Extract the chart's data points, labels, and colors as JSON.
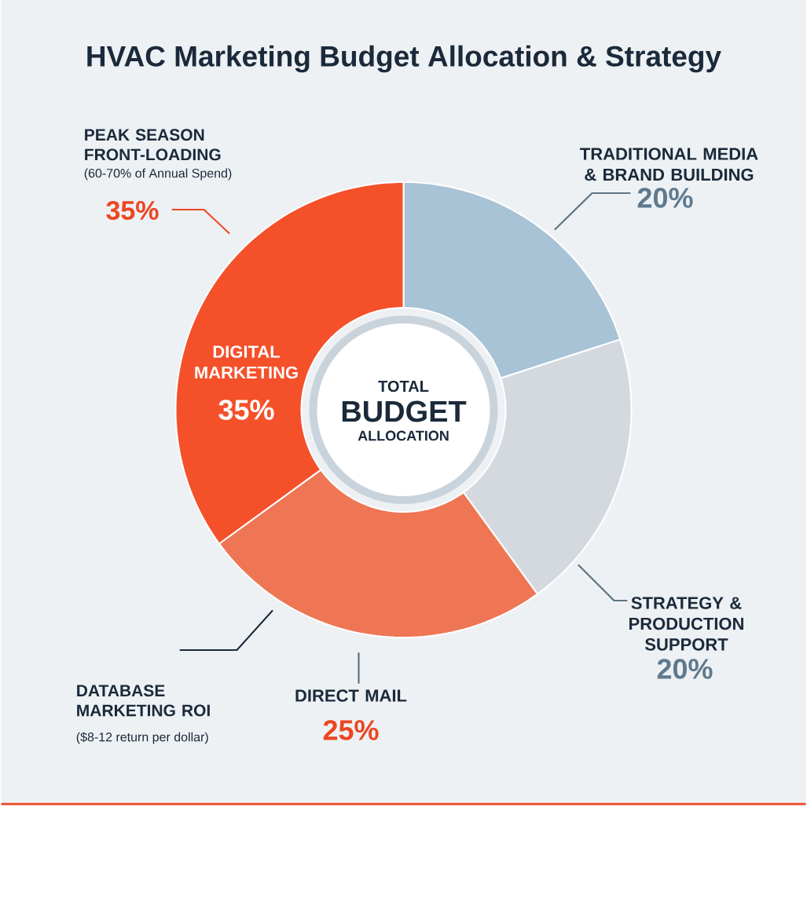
{
  "chart_data": {
    "type": "donut",
    "title": "HVAC Marketing Budget Allocation & Strategy",
    "categories": [
      "TRADITIONAL MEDIA & BRAND BUILDING",
      "STRATEGY & PRODUCTION SUPPORT",
      "DIRECT MAIL",
      "DIGITAL MARKETING"
    ],
    "values": [
      20,
      20,
      25,
      35
    ],
    "colors": [
      "#a8c3d6",
      "#d3d9df",
      "#ee7655",
      "#f4512b"
    ],
    "value_labels": [
      "20%",
      "20%",
      "25%",
      "35%"
    ],
    "annotations": [
      "TOTAL",
      "BUDGET",
      "ALLOCATION",
      "PEAK SEASON FRONT-LOADING",
      "(60-70% of Annual Spend)",
      "35%",
      "DATABASE MARKETING ROI",
      "($8-12 return per dollar)"
    ]
  }
}
